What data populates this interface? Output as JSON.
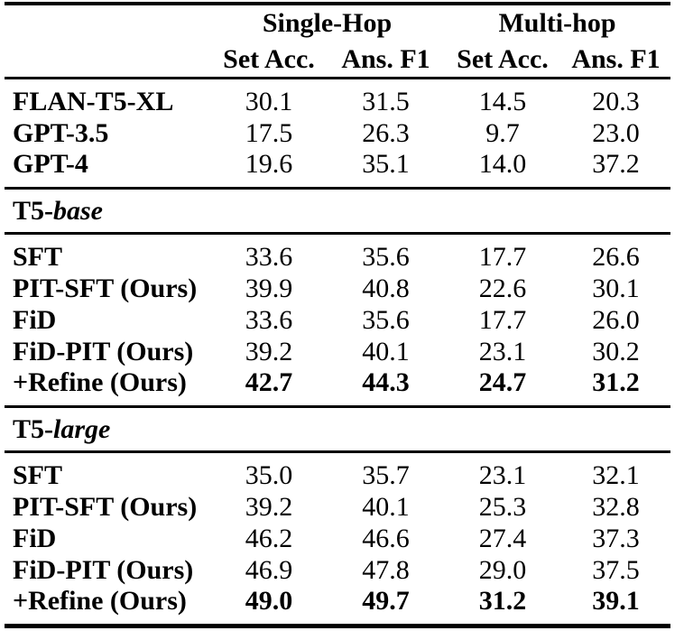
{
  "colors": {
    "text": "#000000",
    "background": "#ffffff",
    "rule": "#000000"
  },
  "table": {
    "col_groups": [
      {
        "label": "Single-Hop"
      },
      {
        "label": "Multi-hop"
      }
    ],
    "sub_headers": [
      "Set Acc.",
      "Ans. F1",
      "Set Acc.",
      "Ans. F1"
    ],
    "sections": [
      {
        "header": null,
        "rows": [
          {
            "label": "FLAN-T5-XL",
            "values": [
              "30.1",
              "31.5",
              "14.5",
              "20.3"
            ],
            "bold_values": false
          },
          {
            "label": "GPT-3.5",
            "values": [
              "17.5",
              "26.3",
              "9.7",
              "23.0"
            ],
            "bold_values": false
          },
          {
            "label": "GPT-4",
            "values": [
              "19.6",
              "35.1",
              "14.0",
              "37.2"
            ],
            "bold_values": false
          }
        ]
      },
      {
        "header": {
          "prefix": "T5-",
          "emph": "base"
        },
        "rows": [
          {
            "label": "SFT",
            "values": [
              "33.6",
              "35.6",
              "17.7",
              "26.6"
            ],
            "bold_values": false
          },
          {
            "label": "PIT-SFT (Ours)",
            "values": [
              "39.9",
              "40.8",
              "22.6",
              "30.1"
            ],
            "bold_values": false
          },
          {
            "label": "FiD",
            "values": [
              "33.6",
              "35.6",
              "17.7",
              "26.0"
            ],
            "bold_values": false
          },
          {
            "label": "FiD-PIT (Ours)",
            "values": [
              "39.2",
              "40.1",
              "23.1",
              "30.2"
            ],
            "bold_values": false
          },
          {
            "label": "+Refine (Ours)",
            "values": [
              "42.7",
              "44.3",
              "24.7",
              "31.2"
            ],
            "bold_values": true
          }
        ]
      },
      {
        "header": {
          "prefix": "T5-",
          "emph": "large"
        },
        "rows": [
          {
            "label": "SFT",
            "values": [
              "35.0",
              "35.7",
              "23.1",
              "32.1"
            ],
            "bold_values": false
          },
          {
            "label": "PIT-SFT (Ours)",
            "values": [
              "39.2",
              "40.1",
              "25.3",
              "32.8"
            ],
            "bold_values": false
          },
          {
            "label": "FiD",
            "values": [
              "46.2",
              "46.6",
              "27.4",
              "37.3"
            ],
            "bold_values": false
          },
          {
            "label": "FiD-PIT (Ours)",
            "values": [
              "46.9",
              "47.8",
              "29.0",
              "37.5"
            ],
            "bold_values": false
          },
          {
            "label": "+Refine (Ours)",
            "values": [
              "49.0",
              "49.7",
              "31.2",
              "39.1"
            ],
            "bold_values": true
          }
        ]
      }
    ]
  }
}
